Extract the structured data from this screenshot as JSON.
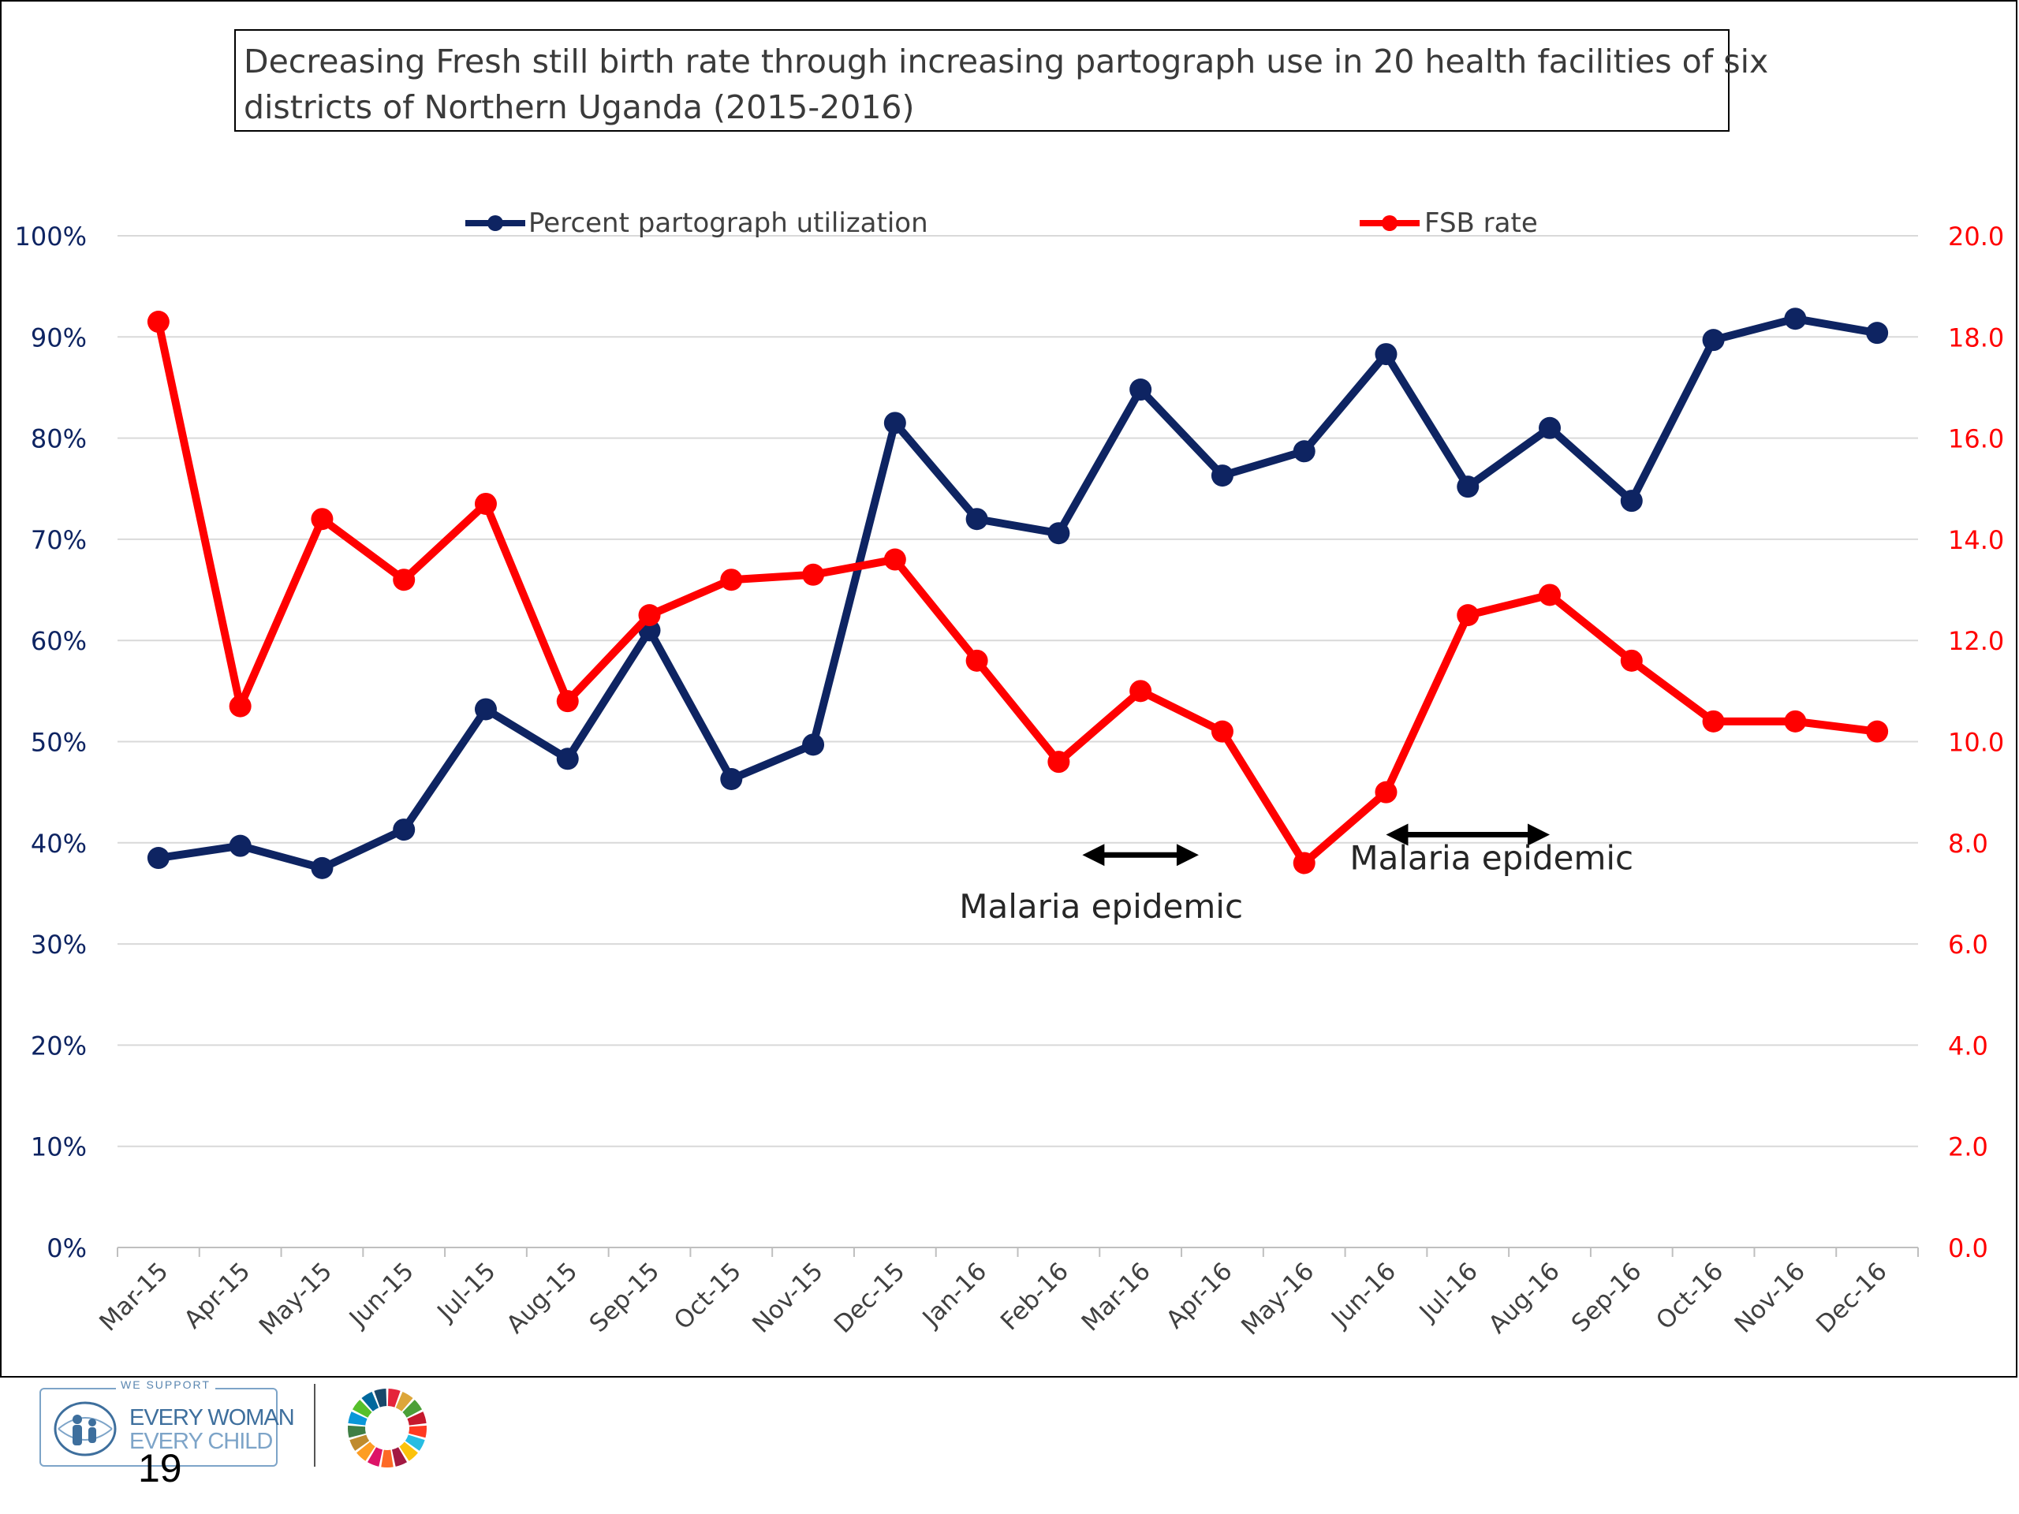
{
  "chart_data": {
    "type": "line",
    "title": "Decreasing Fresh still birth rate through increasing partograph use in 20 health facilities of six districts of Northern Uganda (2015-2016)",
    "title_lines": [
      "Decreasing Fresh still birth rate through increasing partograph use in 20 health facilities of six",
      "districts of Northern Uganda (2015-2016)"
    ],
    "categories": [
      "Mar-15",
      "Apr-15",
      "May-15",
      "Jun-15",
      "Jul-15",
      "Aug-15",
      "Sep-15",
      "Oct-15",
      "Nov-15",
      "Dec-15",
      "Jan-16",
      "Feb-16",
      "Mar-16",
      "Apr-16",
      "May-16",
      "Jun-16",
      "Jul-16",
      "Aug-16",
      "Sep-16",
      "Oct-16",
      "Nov-16",
      "Dec-16"
    ],
    "series": [
      {
        "name": "Percent partograph utilization",
        "axis": "left",
        "color": "#0e2462",
        "values": [
          38.5,
          39.7,
          37.5,
          41.3,
          53.2,
          48.3,
          61.0,
          46.3,
          49.7,
          81.5,
          72.0,
          70.6,
          84.8,
          76.3,
          78.7,
          88.3,
          75.2,
          81.0,
          73.8,
          89.7,
          91.8,
          90.4
        ]
      },
      {
        "name": "FSB rate",
        "axis": "right",
        "color": "#ff0000",
        "values": [
          18.3,
          10.7,
          14.4,
          13.2,
          14.7,
          10.8,
          12.5,
          13.2,
          13.3,
          13.6,
          11.6,
          9.6,
          11.0,
          10.2,
          7.6,
          9.0,
          12.5,
          12.9,
          11.6,
          10.4,
          10.4,
          10.2
        ]
      }
    ],
    "y_left": {
      "ylim": [
        0,
        100
      ],
      "ticks": [
        0,
        10,
        20,
        30,
        40,
        50,
        60,
        70,
        80,
        90,
        100
      ],
      "tick_labels": [
        "0%",
        "10%",
        "20%",
        "30%",
        "40%",
        "50%",
        "60%",
        "70%",
        "80%",
        "90%",
        "100%"
      ],
      "color": "#0e2462"
    },
    "y_right": {
      "ylim": [
        0,
        20
      ],
      "ticks": [
        0,
        2,
        4,
        6,
        8,
        10,
        12,
        14,
        16,
        18,
        20
      ],
      "tick_labels": [
        "0.0",
        "2.0",
        "4.0",
        "6.0",
        "8.0",
        "10.0",
        "12.0",
        "14.0",
        "16.0",
        "18.0",
        "20.0"
      ],
      "color": "#ff0000"
    },
    "grid": true,
    "legend": "top",
    "annotations": [
      {
        "text": "Malaria epidemic",
        "arrow_from": "Feb-16",
        "arrow_to": "Apr-16",
        "arrow_level_pct": 38.8
      },
      {
        "text": "Malaria epidemic",
        "arrow_from": "Jun-16",
        "arrow_to": "Aug-16",
        "arrow_level_pct": 40.8
      }
    ]
  },
  "footer": {
    "logo_top": "WE SUPPORT",
    "logo_line1": "EVERY WOMAN",
    "logo_line2": "EVERY CHILD",
    "page_number": "19"
  }
}
